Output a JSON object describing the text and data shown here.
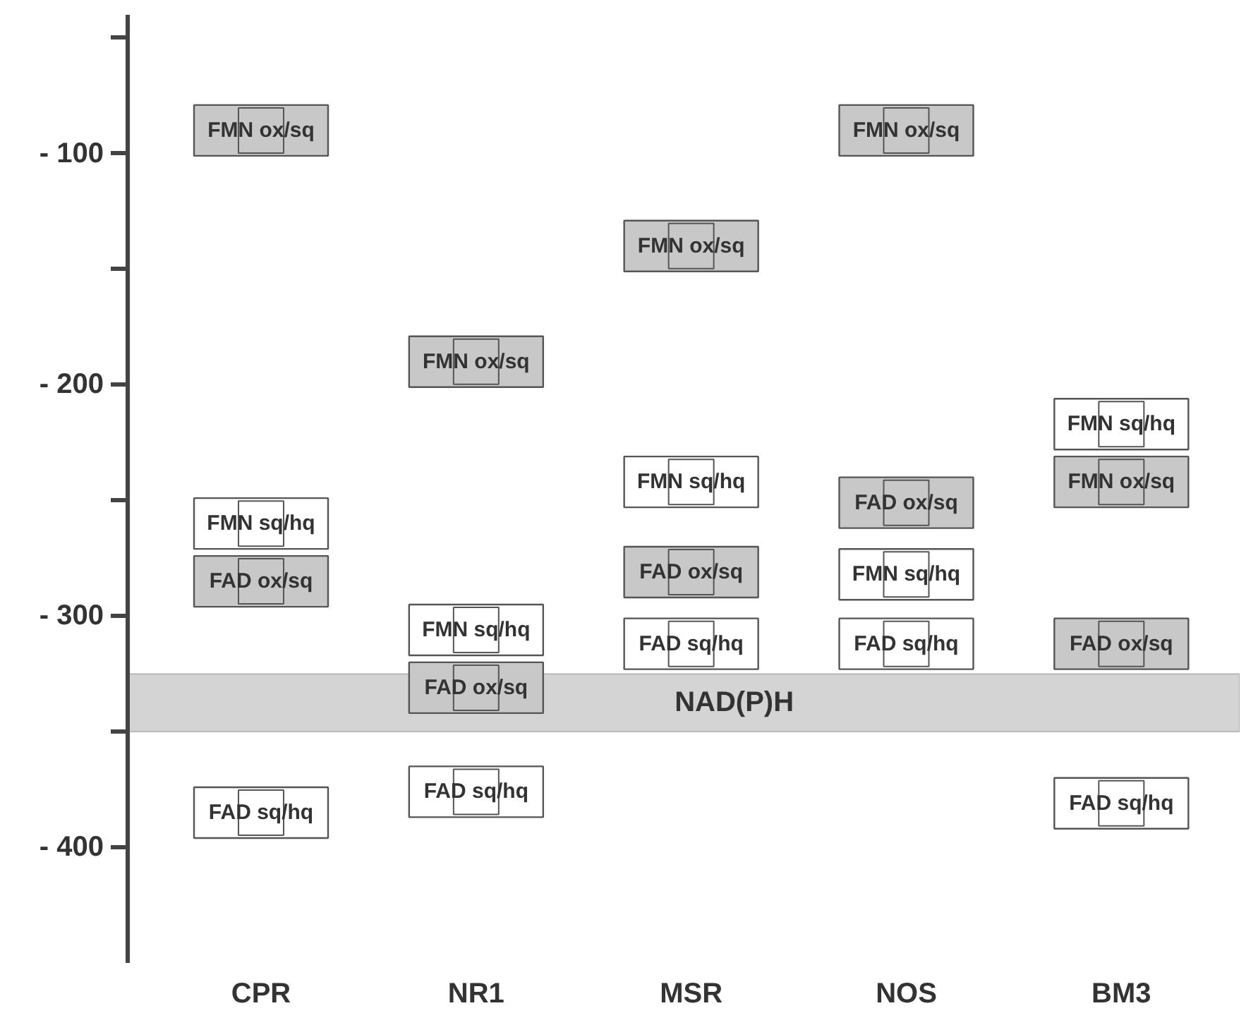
{
  "chart_data": {
    "type": "scatter",
    "marker": "square",
    "legend": false,
    "categories": [
      "CPR",
      "NR1",
      "MSR",
      "NOS",
      "BM3"
    ],
    "series": [
      {
        "name": "FMN ox/sq",
        "color": "#c8c8c8",
        "values": [
          -90,
          -190,
          -140,
          -90,
          -242
        ]
      },
      {
        "name": "FMN sq/hq",
        "color": "#ffffff",
        "values": [
          -260,
          -306,
          -242,
          -282,
          -217
        ]
      },
      {
        "name": "FAD ox/sq",
        "color": "#c8c8c8",
        "values": [
          -285,
          -331,
          -281,
          -251,
          -312
        ]
      },
      {
        "name": "FAD sq/hq",
        "color": "#ffffff",
        "values": [
          -385,
          -376,
          -312,
          -312,
          -381
        ]
      }
    ],
    "ylim": [
      -450,
      -40
    ],
    "yticks": [
      {
        "value": -50,
        "label": null
      },
      -100,
      {
        "value": -150,
        "label": null
      },
      -200,
      {
        "value": -250,
        "label": null
      },
      -300,
      {
        "value": -350,
        "label": null
      },
      -400
    ],
    "bands": [
      {
        "axis": "y",
        "from": -350,
        "to": -325,
        "label": "NAD(P)H",
        "color": "#d4d4d4"
      }
    ],
    "grid": false
  }
}
